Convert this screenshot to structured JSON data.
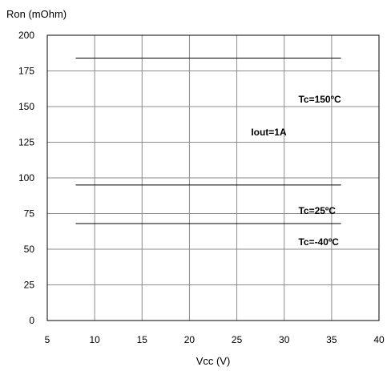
{
  "chart_data": {
    "type": "line",
    "title": "",
    "xlabel": "Vcc (V)",
    "ylabel": "Ron (mOhm)",
    "xlim": [
      5,
      40
    ],
    "ylim": [
      0,
      200
    ],
    "xticks": [
      5,
      10,
      15,
      20,
      25,
      30,
      35,
      40
    ],
    "yticks": [
      0,
      25,
      50,
      75,
      100,
      125,
      150,
      175,
      200
    ],
    "grid": true,
    "series": [
      {
        "name": "Tc=150ºC",
        "x": [
          8,
          36
        ],
        "y": [
          184,
          184
        ]
      },
      {
        "name": "Tc=25ºC",
        "x": [
          8,
          36
        ],
        "y": [
          95,
          95
        ]
      },
      {
        "name": "Tc=-40ºC",
        "x": [
          8,
          36
        ],
        "y": [
          68,
          68
        ]
      }
    ],
    "annotations": [
      {
        "text": "Tc=150ºC",
        "x": 31.5,
        "y": 155
      },
      {
        "text": "Iout=1A",
        "x": 26.5,
        "y": 132
      },
      {
        "text": "Tc=25ºC",
        "x": 31.5,
        "y": 77
      },
      {
        "text": "Tc=-40ºC",
        "x": 31.5,
        "y": 55
      }
    ]
  }
}
